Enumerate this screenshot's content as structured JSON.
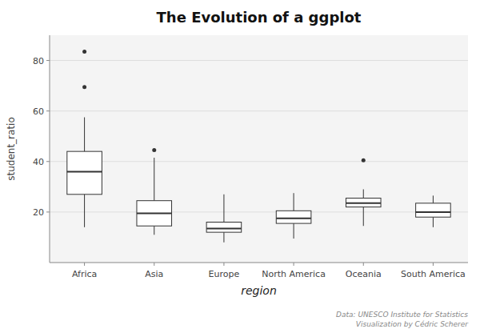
{
  "chart_data": {
    "type": "box",
    "title": "The Evolution of a ggplot",
    "x_label": "region",
    "y_label": "student_ratio",
    "caption": "Data: UNESCO Institute for Statistics\nVisualization by Cédric Scherer",
    "categories": [
      "Africa",
      "Asia",
      "Europe",
      "North America",
      "Oceania",
      "South America"
    ],
    "boxes": [
      {
        "q1": 27.0,
        "median": 36.0,
        "q3": 44.0,
        "whisker_low": 14.0,
        "whisker_high": 57.5,
        "outliers": [
          69.5,
          83.5
        ]
      },
      {
        "q1": 14.5,
        "median": 19.5,
        "q3": 24.5,
        "whisker_low": 11.0,
        "whisker_high": 41.5,
        "outliers": [
          44.5
        ]
      },
      {
        "q1": 12.0,
        "median": 13.5,
        "q3": 16.0,
        "whisker_low": 8.0,
        "whisker_high": 27.0,
        "outliers": []
      },
      {
        "q1": 15.5,
        "median": 17.5,
        "q3": 20.5,
        "whisker_low": 9.5,
        "whisker_high": 27.5,
        "outliers": []
      },
      {
        "q1": 22.0,
        "median": 23.5,
        "q3": 25.5,
        "whisker_low": 14.5,
        "whisker_high": 29.0,
        "outliers": [
          40.5
        ]
      },
      {
        "q1": 18.0,
        "median": 20.0,
        "q3": 23.5,
        "whisker_low": 14.0,
        "whisker_high": 26.5,
        "outliers": []
      }
    ],
    "color": "#333333",
    "ylim": [
      0,
      90
    ],
    "yticks": [
      20,
      40,
      60,
      80
    ],
    "grid": true
  }
}
